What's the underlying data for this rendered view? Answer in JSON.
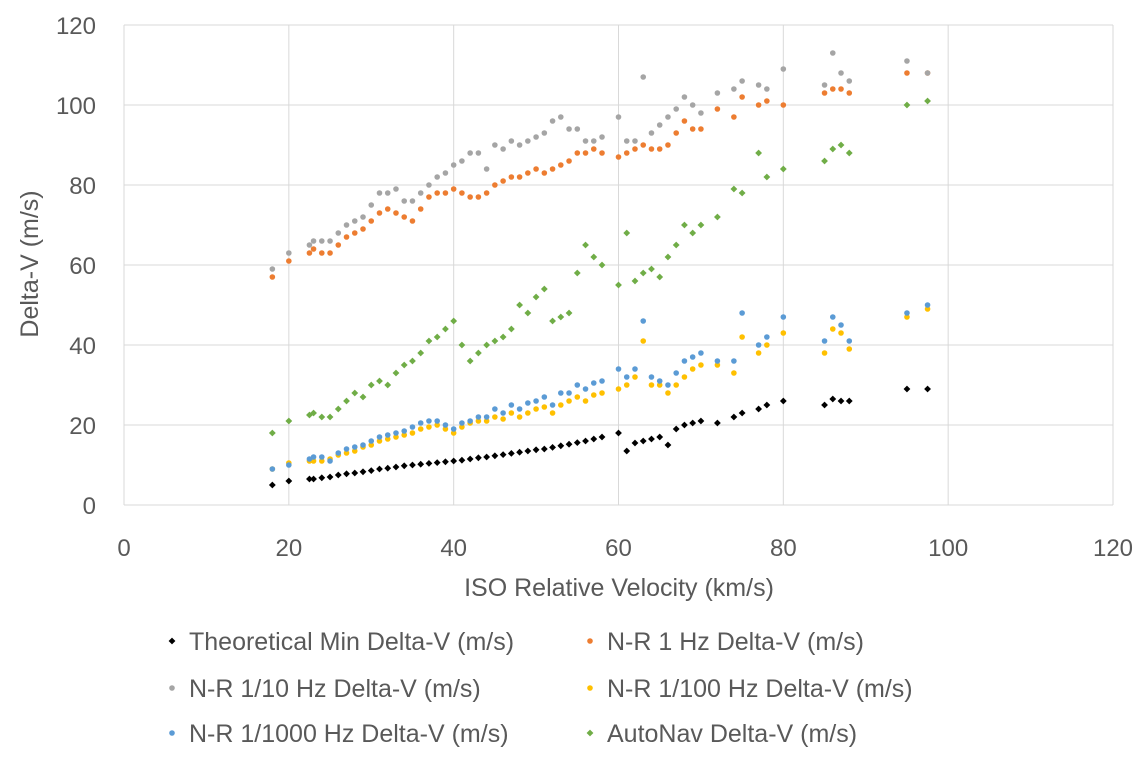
{
  "chart_data": {
    "type": "scatter",
    "title": "",
    "xlabel": "ISO Relative Velocity (km/s)",
    "ylabel": "Delta-V (m/s)",
    "xlim": [
      0,
      120
    ],
    "ylim": [
      0,
      120
    ],
    "x_ticks": [
      "0",
      "20",
      "40",
      "60",
      "80",
      "100",
      "120"
    ],
    "y_ticks": [
      "0",
      "20",
      "40",
      "60",
      "80",
      "100",
      "120"
    ],
    "grid": true,
    "legend_position": "bottom",
    "x": [
      18,
      20,
      22.5,
      23,
      24,
      25,
      26,
      27,
      28,
      29,
      30,
      31,
      32,
      33,
      34,
      35,
      36,
      37,
      38,
      39,
      40,
      41,
      42,
      43,
      44,
      45,
      46,
      47,
      48,
      49,
      50,
      51,
      52,
      53,
      54,
      55,
      56,
      57,
      58,
      60,
      61,
      62,
      63,
      64,
      65,
      66,
      67,
      68,
      69,
      70,
      72,
      74,
      75,
      77,
      78,
      80,
      85,
      86,
      87,
      88,
      95,
      97.5
    ],
    "series": [
      {
        "name": "Theoretical Min Delta-V (m/s)",
        "color": "#000000",
        "marker": "diamond",
        "values": [
          5,
          6,
          6.5,
          6.5,
          6.8,
          7,
          7.5,
          7.8,
          8,
          8.3,
          8.6,
          9,
          9.2,
          9.5,
          9.8,
          10,
          10.2,
          10.4,
          10.6,
          10.8,
          11,
          11.2,
          11.5,
          11.8,
          12,
          12.3,
          12.6,
          12.9,
          13.2,
          13.5,
          13.8,
          14,
          14.4,
          14.8,
          15.2,
          15.6,
          16,
          16.5,
          17,
          18,
          13.5,
          15.5,
          16,
          16.5,
          17,
          15,
          19,
          20,
          20.5,
          21,
          20.5,
          22,
          23,
          24,
          25,
          26,
          25,
          26.5,
          26,
          26,
          29,
          29
        ]
      },
      {
        "name": "N-R 1 Hz Delta-V (m/s)",
        "color": "#ED7D31",
        "marker": "circle",
        "values": [
          57,
          61,
          63,
          64,
          63,
          63,
          65,
          67,
          68,
          69,
          71,
          73,
          74,
          73,
          72,
          71,
          74,
          77,
          78,
          78,
          79,
          78,
          77,
          77,
          78,
          80,
          81,
          82,
          82,
          83,
          84,
          83,
          84,
          85,
          86,
          88,
          88,
          89,
          88,
          87,
          88,
          89,
          90,
          89,
          89,
          90,
          93,
          96,
          94,
          94,
          99,
          97,
          102,
          100,
          101,
          100,
          103,
          104,
          104,
          103,
          108,
          108
        ]
      },
      {
        "name": "N-R 1/10 Hz Delta-V (m/s)",
        "color": "#A5A5A5",
        "marker": "circle",
        "values": [
          59,
          63,
          65,
          66,
          66,
          66,
          68,
          70,
          71,
          72,
          75,
          78,
          78,
          79,
          76,
          76,
          78,
          80,
          82,
          83,
          85,
          86,
          88,
          88,
          84,
          90,
          89,
          91,
          90,
          91,
          92,
          93,
          96,
          97,
          94,
          94,
          91,
          91,
          92,
          97,
          91,
          91,
          107,
          93,
          95,
          97,
          99,
          102,
          100,
          98,
          103,
          104,
          106,
          105,
          104,
          109,
          105,
          113,
          108,
          106,
          111,
          108
        ]
      },
      {
        "name": "N-R 1/100 Hz Delta-V (m/s)",
        "color": "#FFC000",
        "marker": "circle",
        "values": [
          9,
          10.5,
          11,
          11,
          11,
          11.5,
          12.5,
          13,
          13.5,
          14.5,
          15,
          16,
          16.5,
          17,
          17.5,
          18,
          19,
          19.5,
          20,
          19,
          18,
          19.5,
          20.5,
          21,
          21,
          22,
          21.5,
          23,
          22,
          23,
          24,
          24.5,
          23,
          25,
          26,
          27,
          26,
          27.5,
          28,
          29,
          30,
          32,
          41,
          30,
          30,
          28,
          30,
          32,
          34,
          35,
          35,
          33,
          42,
          38,
          40,
          43,
          38,
          44,
          43,
          39,
          47,
          49
        ]
      },
      {
        "name": "N-R 1/1000 Hz Delta-V (m/s)",
        "color": "#5B9BD5",
        "marker": "circle",
        "values": [
          9,
          10,
          11.5,
          12,
          12,
          11,
          13,
          14,
          14.5,
          15,
          16,
          17,
          17.5,
          18,
          18.5,
          19.5,
          20.5,
          21,
          21,
          20,
          19,
          20.5,
          21,
          22,
          22,
          24,
          23,
          25,
          24,
          25.5,
          26,
          27,
          25,
          28,
          28,
          30,
          29,
          30.5,
          31,
          34,
          32,
          34,
          46,
          32,
          31,
          30,
          33,
          36,
          37,
          38,
          36,
          36,
          48,
          40,
          42,
          47,
          41,
          47,
          45,
          41,
          48,
          50
        ]
      },
      {
        "name": "AutoNav Delta-V (m/s)",
        "color": "#70AD47",
        "marker": "diamond",
        "values": [
          18,
          21,
          22.5,
          23,
          22,
          22,
          24,
          26,
          28,
          27,
          30,
          31,
          30,
          33,
          35,
          36,
          38,
          41,
          42,
          44,
          46,
          40,
          36,
          38,
          40,
          41,
          42,
          44,
          50,
          48,
          52,
          54,
          46,
          47,
          48,
          58,
          65,
          62,
          60,
          55,
          68,
          56,
          58,
          59,
          57,
          62,
          65,
          70,
          68,
          70,
          72,
          79,
          78,
          88,
          82,
          84,
          86,
          89,
          90,
          88,
          100,
          101
        ]
      }
    ]
  }
}
